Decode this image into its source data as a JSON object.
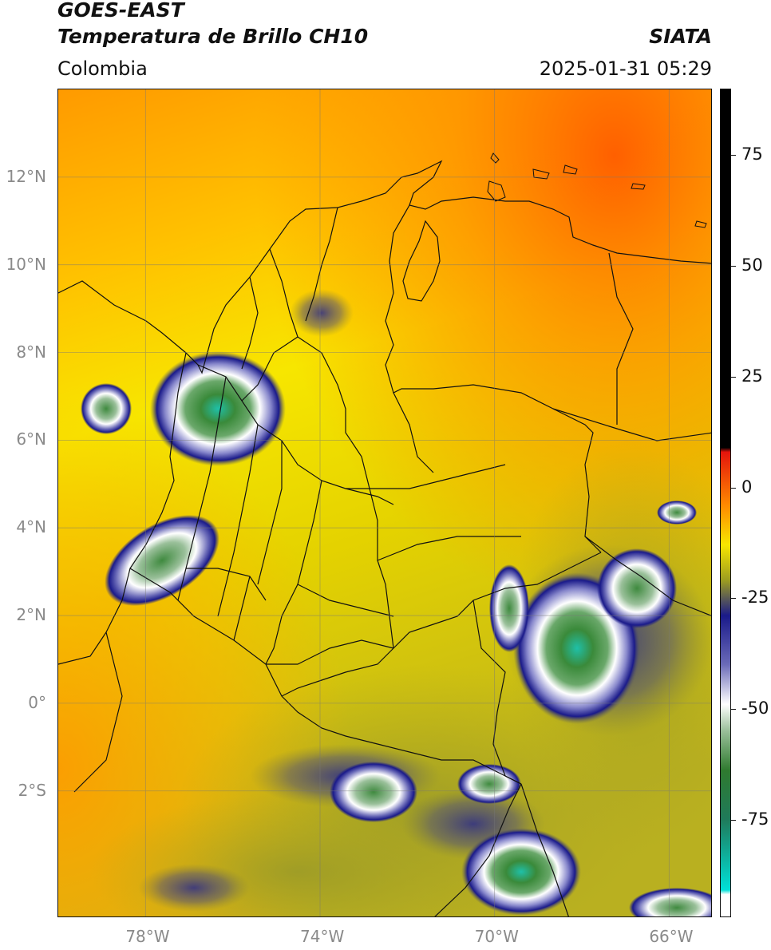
{
  "header": {
    "title_line1": "GOES-EAST",
    "title_line2": "Temperatura de Brillo CH10",
    "brand": "SIATA",
    "region": "Colombia",
    "timestamp": "2025-01-31 05:29"
  },
  "map": {
    "lat_labels": [
      "12°N",
      "10°N",
      "8°N",
      "6°N",
      "4°N",
      "2°N",
      "0°",
      "2°S"
    ],
    "lon_labels": [
      "78°W",
      "74°W",
      "70°W",
      "66°W"
    ],
    "lat_range": [
      -4.9,
      14.0
    ],
    "lon_range": [
      -80.0,
      -65.0
    ],
    "gridlines": true
  },
  "colorbar": {
    "variable": "brightness temperature",
    "tick_labels": [
      "75",
      "50",
      "25",
      "0",
      "-25",
      "-50",
      "-75"
    ],
    "tick_values": [
      75,
      50,
      25,
      0,
      -25,
      -50,
      -75
    ],
    "range": [
      -97,
      90
    ],
    "colors": {
      "hot": "#000000",
      "red": "#e4140c",
      "orange": "#ff8a00",
      "yellow": "#f7e600",
      "olive": "#9c9c20",
      "blue": "#1a1a8a",
      "white": "#ffffff",
      "green": "#2f7a2f",
      "cyan": "#00e0d8"
    }
  }
}
